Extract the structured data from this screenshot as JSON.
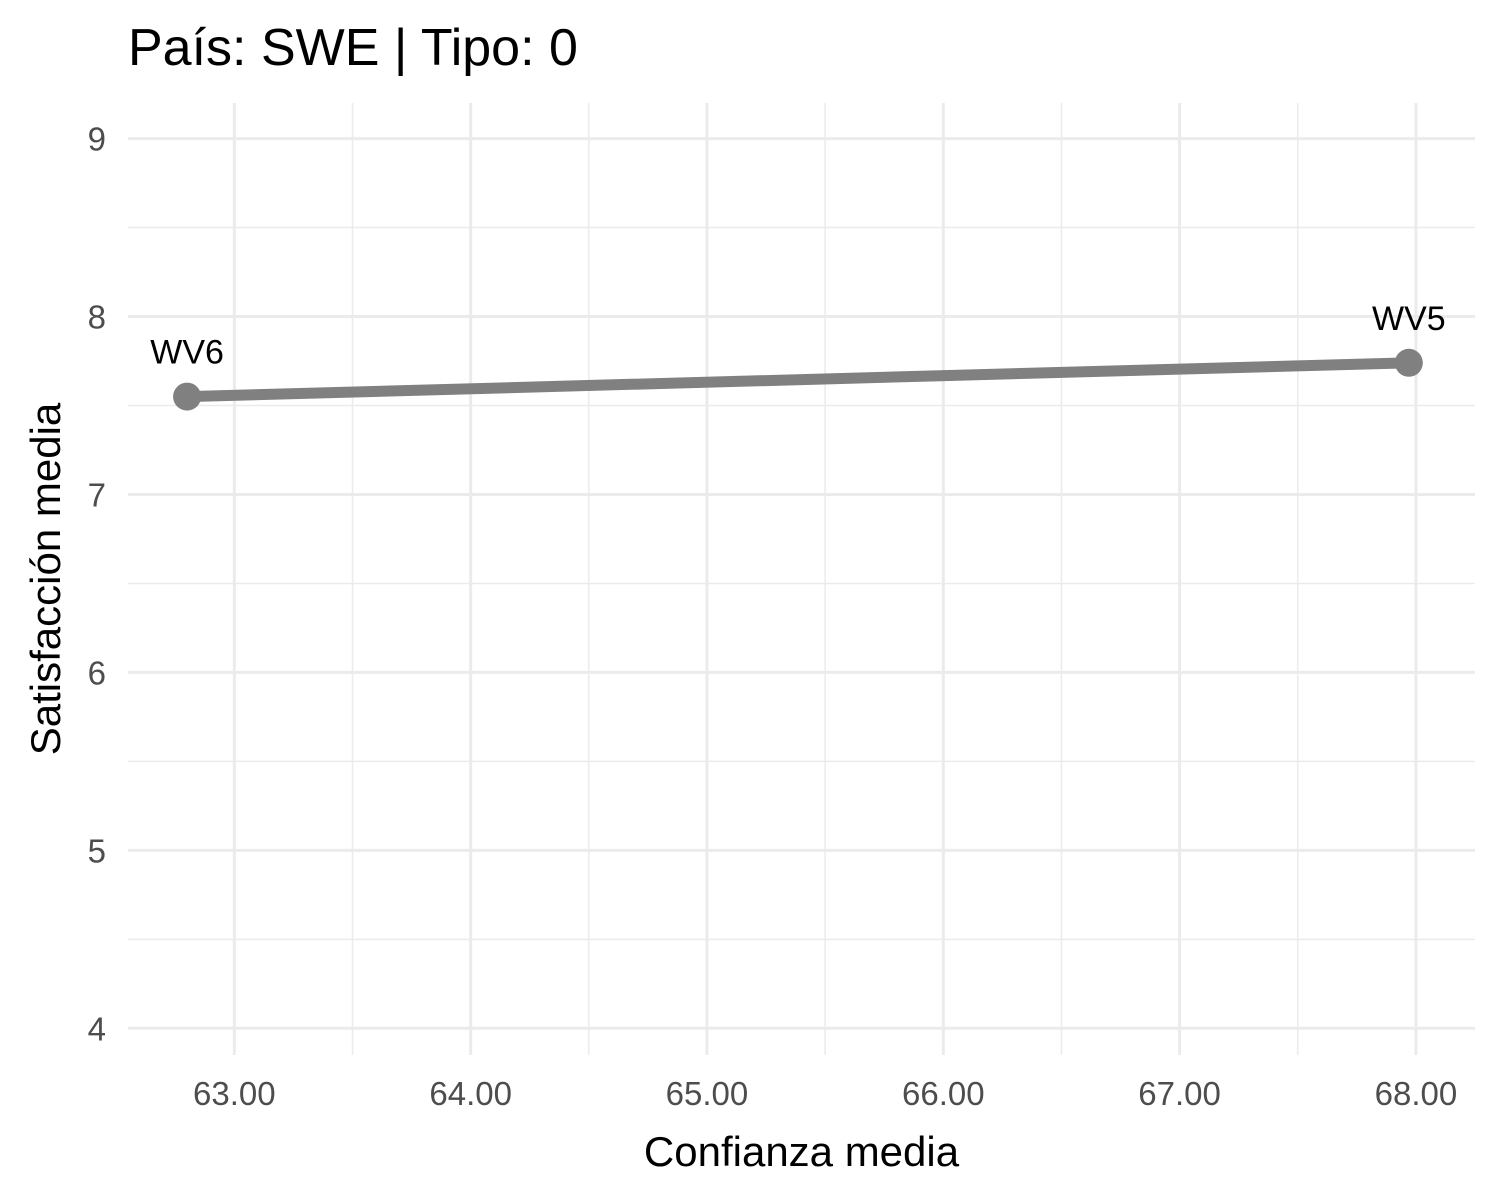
{
  "chart_data": {
    "type": "line",
    "title": "País: SWE | Tipo: 0",
    "xlabel": "Confianza media",
    "ylabel": "Satisfacción media",
    "xlim": [
      62.55,
      68.25
    ],
    "ylim": [
      3.85,
      9.2
    ],
    "x_ticks": [
      63,
      64,
      65,
      66,
      67,
      68
    ],
    "x_tick_labels": [
      "63.00",
      "64.00",
      "65.00",
      "66.00",
      "67.00",
      "68.00"
    ],
    "y_ticks": [
      4,
      5,
      6,
      7,
      8,
      9
    ],
    "y_tick_labels": [
      "4",
      "5",
      "6",
      "7",
      "8",
      "9"
    ],
    "grid": true,
    "series": [
      {
        "color": "#808080",
        "points": [
          {
            "label": "WV6",
            "x": 62.8,
            "y": 7.55
          },
          {
            "label": "WV5",
            "x": 67.97,
            "y": 7.74
          }
        ]
      }
    ]
  }
}
